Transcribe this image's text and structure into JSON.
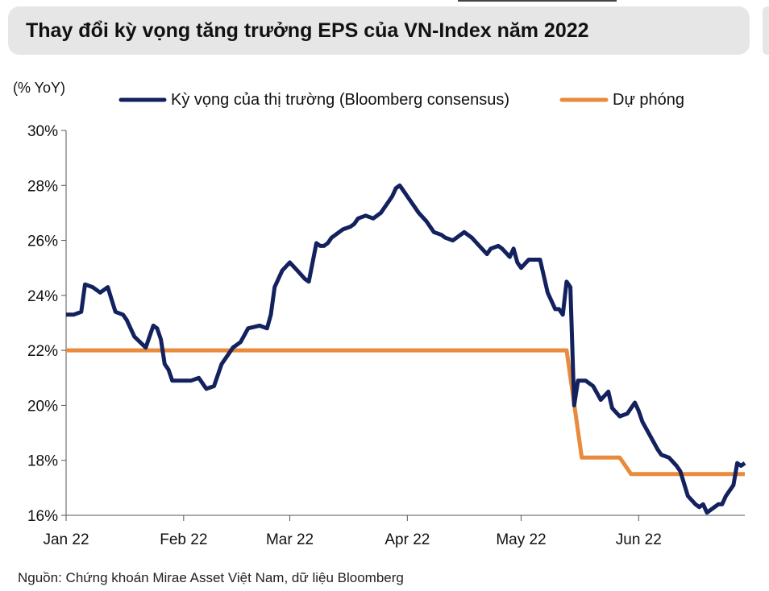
{
  "title": "Thay đổi kỳ vọng tăng trưởng EPS của VN-Index năm 2022",
  "source": "Nguồn: Chứng khoán Mirae Asset Việt Nam, dữ liệu Bloomberg",
  "chart_data": {
    "type": "line",
    "title": "Thay đổi kỳ vọng tăng trưởng EPS của VN-Index năm 2022",
    "ylabel": "(% YoY)",
    "xlabel": "",
    "ylim": [
      16,
      30
    ],
    "xlim": [
      1,
      180
    ],
    "y_ticks": [
      16,
      18,
      20,
      22,
      24,
      26,
      28,
      30
    ],
    "y_tick_labels": [
      "16%",
      "18%",
      "20%",
      "22%",
      "24%",
      "26%",
      "28%",
      "30%"
    ],
    "x_ticks": [
      1,
      32,
      60,
      91,
      121,
      152
    ],
    "x_tick_labels": [
      "Jan 22",
      "Feb 22",
      "Mar 22",
      "Apr 22",
      "May 22",
      "Jun 22"
    ],
    "grid": false,
    "legend": "top",
    "colors": {
      "consensus": "#13225e",
      "forecast": "#e98a3c"
    },
    "series": [
      {
        "name": "Kỳ vọng của thị trường (Bloomberg consensus)",
        "x": [
          1,
          3,
          5,
          6,
          8,
          10,
          12,
          14,
          16,
          17,
          19,
          22,
          24,
          25,
          26,
          27,
          28,
          29,
          31,
          32,
          34,
          36,
          38,
          40,
          42,
          44,
          45,
          47,
          49,
          52,
          54,
          55,
          56,
          58,
          60,
          62,
          64,
          65,
          67,
          68,
          69,
          70,
          71,
          72,
          74,
          76,
          77,
          78,
          80,
          82,
          84,
          86,
          87,
          88,
          89,
          90,
          92,
          94,
          96,
          98,
          100,
          101,
          103,
          106,
          108,
          110,
          112,
          113,
          115,
          116,
          118,
          119,
          120,
          121,
          123,
          126,
          128,
          130,
          131,
          132,
          133,
          134,
          135,
          136,
          138,
          140,
          142,
          144,
          145,
          147,
          149,
          151,
          152,
          153,
          155,
          157,
          158,
          160,
          162,
          163,
          165,
          167,
          168,
          169,
          170,
          171,
          173,
          174,
          175,
          177,
          178,
          179,
          180
        ],
        "values": [
          23.3,
          23.3,
          23.4,
          24.4,
          24.3,
          24.1,
          24.3,
          23.4,
          23.3,
          23.1,
          22.5,
          22.1,
          22.9,
          22.8,
          22.4,
          21.5,
          21.3,
          20.9,
          20.9,
          20.9,
          20.9,
          21.0,
          20.6,
          20.7,
          21.5,
          21.9,
          22.1,
          22.3,
          22.8,
          22.9,
          22.8,
          23.3,
          24.3,
          24.9,
          25.2,
          24.9,
          24.6,
          24.5,
          25.9,
          25.8,
          25.8,
          25.9,
          26.1,
          26.2,
          26.4,
          26.5,
          26.6,
          26.8,
          26.9,
          26.8,
          27.0,
          27.4,
          27.6,
          27.9,
          28.0,
          27.8,
          27.4,
          27.0,
          26.7,
          26.3,
          26.2,
          26.1,
          26.0,
          26.3,
          26.1,
          25.8,
          25.5,
          25.7,
          25.8,
          25.7,
          25.4,
          25.7,
          25.2,
          25.0,
          25.3,
          25.3,
          24.1,
          23.5,
          23.5,
          23.3,
          24.5,
          24.3,
          20.0,
          20.9,
          20.9,
          20.7,
          20.2,
          20.5,
          19.9,
          19.6,
          19.7,
          20.1,
          19.8,
          19.4,
          18.9,
          18.4,
          18.2,
          18.1,
          17.8,
          17.6,
          16.7,
          16.4,
          16.3,
          16.4,
          16.1,
          16.2,
          16.4,
          16.4,
          16.7,
          17.1,
          17.9,
          17.8,
          17.9
        ]
      },
      {
        "name": "Dự phóng",
        "x": [
          1,
          133,
          137,
          147,
          148,
          150,
          180
        ],
        "values": [
          22.0,
          22.0,
          18.1,
          18.1,
          17.9,
          17.5,
          17.5
        ]
      }
    ]
  }
}
